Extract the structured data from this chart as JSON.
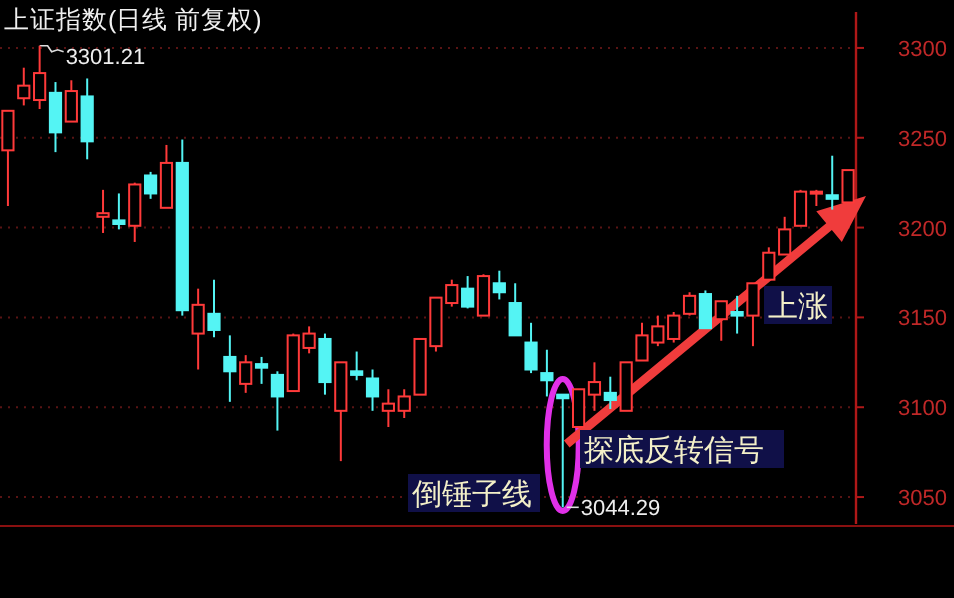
{
  "chart_data": {
    "type": "candlestick",
    "title": "上证指数(日线 前复权)",
    "categories": [
      null,
      null,
      null,
      null,
      null,
      null,
      null,
      null,
      null,
      null,
      null,
      null,
      null,
      null,
      null,
      null,
      null,
      null,
      null,
      null,
      null,
      null,
      null,
      null,
      null,
      null,
      null,
      null,
      null,
      null,
      null,
      null,
      null,
      null,
      null,
      null,
      null,
      null,
      null,
      null,
      null,
      null,
      null,
      null,
      null,
      null,
      null,
      null,
      null,
      null,
      null,
      null,
      null,
      null
    ],
    "ohlc": [
      [
        3243,
        3265,
        3212,
        3265
      ],
      [
        3272,
        3289,
        3268,
        3279
      ],
      [
        3271,
        3301.21,
        3266,
        3286
      ],
      [
        3275,
        3281,
        3242,
        3253
      ],
      [
        3259,
        3282,
        3259,
        3276
      ],
      [
        3273,
        3283,
        3238,
        3248
      ],
      [
        3206,
        3221,
        3197,
        3208
      ],
      [
        3204,
        3219,
        3199,
        3202
      ],
      [
        3201,
        3225,
        3192,
        3224
      ],
      [
        3229,
        3231,
        3216,
        3219
      ],
      [
        3211,
        3246,
        3211,
        3236
      ],
      [
        3236,
        3249,
        3151,
        3154
      ],
      [
        3141,
        3166,
        3121,
        3157
      ],
      [
        3152,
        3171,
        3139,
        3143
      ],
      [
        3128,
        3140,
        3103,
        3120
      ],
      [
        3113,
        3129,
        3108,
        3125
      ],
      [
        3124,
        3128,
        3113,
        3122
      ],
      [
        3118,
        3120,
        3087,
        3106
      ],
      [
        3109,
        3141,
        3109,
        3140
      ],
      [
        3133,
        3145,
        3130,
        3141
      ],
      [
        3138,
        3141,
        3107,
        3114
      ],
      [
        3098,
        3125,
        3070,
        3125
      ],
      [
        3120,
        3131,
        3115,
        3118
      ],
      [
        3116,
        3121,
        3098,
        3106
      ],
      [
        3098,
        3110,
        3089,
        3102
      ],
      [
        3098,
        3110,
        3094,
        3106
      ],
      [
        3107,
        3138,
        3107,
        3138
      ],
      [
        3134,
        3161,
        3131,
        3161
      ],
      [
        3158,
        3171,
        3156,
        3168
      ],
      [
        3166,
        3173,
        3155,
        3156
      ],
      [
        3151,
        3174,
        3151,
        3173
      ],
      [
        3169,
        3176,
        3160,
        3164
      ],
      [
        3158,
        3169,
        3140,
        3140
      ],
      [
        3136,
        3147,
        3119,
        3121
      ],
      [
        3119,
        3132,
        3106,
        3115
      ],
      [
        3107,
        3107,
        3044.29,
        3105
      ],
      [
        3089,
        3110,
        3089,
        3110
      ],
      [
        3107,
        3125,
        3098,
        3114
      ],
      [
        3108,
        3117,
        3099,
        3104
      ],
      [
        3098,
        3125,
        3098,
        3125
      ],
      [
        3126,
        3147,
        3126,
        3140
      ],
      [
        3136,
        3151,
        3134,
        3145
      ],
      [
        3138,
        3153,
        3136,
        3151
      ],
      [
        3152,
        3164,
        3151,
        3162
      ],
      [
        3163,
        3165,
        3144,
        3144
      ],
      [
        3149,
        3159,
        3137,
        3159
      ],
      [
        3153,
        3162,
        3141,
        3151
      ],
      [
        3151,
        3169,
        3134,
        3169
      ],
      [
        3171,
        3189,
        3171,
        3186
      ],
      [
        3185,
        3206,
        3185,
        3199
      ],
      [
        3201,
        3221,
        3201,
        3220
      ],
      [
        3219,
        3221,
        3212,
        3220
      ],
      [
        3218,
        3240,
        3210,
        3216
      ],
      [
        3214,
        3232,
        3214,
        3232
      ]
    ],
    "colors": [
      "#ff3a3a",
      "#ff3a3a",
      "#ff3a3a",
      "#54f4f4",
      "#ff3a3a",
      "#54f4f4",
      "#ff3a3a",
      "#54f4f4",
      "#ff3a3a",
      "#54f4f4",
      "#ff3a3a",
      "#54f4f4",
      "#ff3a3a",
      "#54f4f4",
      "#54f4f4",
      "#ff3a3a",
      "#54f4f4",
      "#54f4f4",
      "#ff3a3a",
      "#ff3a3a",
      "#54f4f4",
      "#ff3a3a",
      "#54f4f4",
      "#54f4f4",
      "#ff3a3a",
      "#ff3a3a",
      "#ff3a3a",
      "#ff3a3a",
      "#ff3a3a",
      "#54f4f4",
      "#ff3a3a",
      "#54f4f4",
      "#54f4f4",
      "#54f4f4",
      "#54f4f4",
      "#54f4f4",
      "#ff3a3a",
      "#ff3a3a",
      "#54f4f4",
      "#ff3a3a",
      "#ff3a3a",
      "#ff3a3a",
      "#ff3a3a",
      "#ff3a3a",
      "#54f4f4",
      "#ff3a3a",
      "#54f4f4",
      "#ff3a3a",
      "#ff3a3a",
      "#ff3a3a",
      "#ff3a3a",
      "#ff3a3a",
      "#54f4f4",
      "#ff3a3a"
    ],
    "ylim": [
      3035,
      3320
    ],
    "yticks": [
      3050,
      3100,
      3150,
      3200,
      3250,
      3300
    ],
    "grid": "y",
    "tick_labels": "y",
    "annotations": [
      "3301.21",
      "3044.29",
      "倒锤子线",
      "探底反转信号",
      "上涨"
    ]
  }
}
